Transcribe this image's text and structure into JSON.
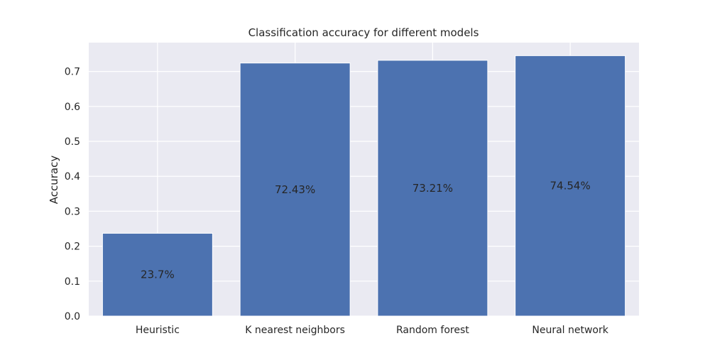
{
  "chart_data": {
    "type": "bar",
    "title": "Classification accuracy for different models",
    "xlabel": "",
    "ylabel": "Accuracy",
    "categories": [
      "Heuristic",
      "K nearest neighbors",
      "Random forest",
      "Neural network"
    ],
    "values": [
      0.237,
      0.7243,
      0.7321,
      0.7454
    ],
    "data_labels": [
      "23.7%",
      "72.43%",
      "73.21%",
      "74.54%"
    ],
    "yticks": [
      0.0,
      0.1,
      0.2,
      0.3,
      0.4,
      0.5,
      0.6,
      0.7
    ],
    "ytick_labels": [
      "0.0",
      "0.1",
      "0.2",
      "0.3",
      "0.4",
      "0.5",
      "0.6",
      "0.7"
    ],
    "ylim": [
      0,
      0.7827
    ],
    "grid": true,
    "colors": {
      "bar": "#4c72b0",
      "background": "#eaeaf2",
      "grid": "#ffffff"
    }
  }
}
